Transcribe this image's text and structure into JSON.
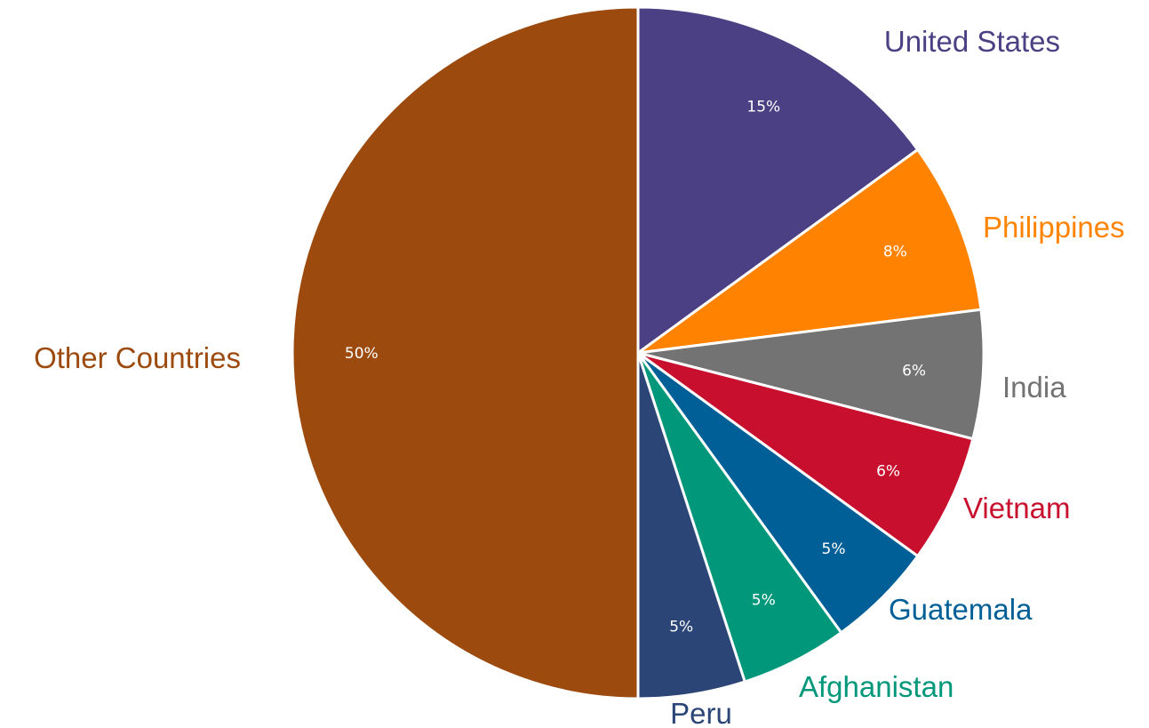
{
  "chart_data": {
    "type": "pie",
    "title": "",
    "start_angle_deg": 0,
    "direction": "clockwise",
    "slices": [
      {
        "label": "United States",
        "value": 15,
        "value_label": "15%",
        "color": "#4c4084"
      },
      {
        "label": "Philippines",
        "value": 8,
        "value_label": "8%",
        "color": "#ff8300"
      },
      {
        "label": "India",
        "value": 6,
        "value_label": "6%",
        "color": "#737373"
      },
      {
        "label": "Vietnam",
        "value": 6,
        "value_label": "6%",
        "color": "#c8102e"
      },
      {
        "label": "Guatemala",
        "value": 5,
        "value_label": "5%",
        "color": "#005f96"
      },
      {
        "label": "Afghanistan",
        "value": 5,
        "value_label": "5%",
        "color": "#00977a"
      },
      {
        "label": "Peru",
        "value": 5,
        "value_label": "5%",
        "color": "#2c4577"
      },
      {
        "label": "Other Countries",
        "value": 50,
        "value_label": "50%",
        "color": "#9c4a0e"
      }
    ]
  }
}
